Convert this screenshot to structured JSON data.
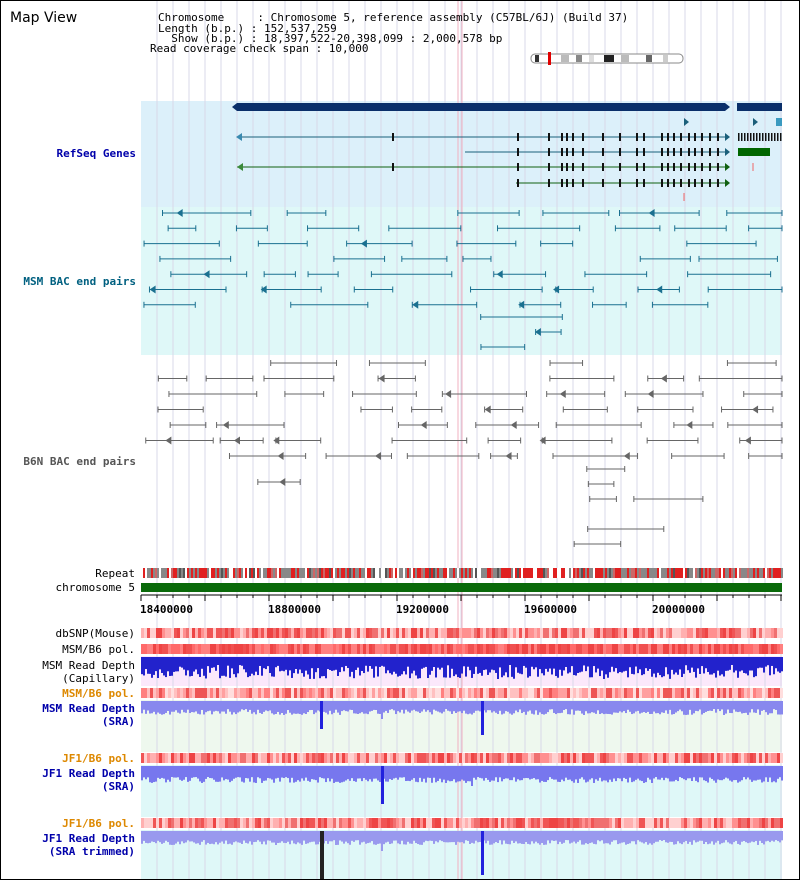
{
  "page_title": "Map View",
  "info": {
    "chromosome": "Chromosome     : Chromosome 5, reference assembly (C57BL/6J) (Build 37)",
    "length": "Length (b.p.) : 152,537,259",
    "show": "  Show (b.p.) : 18,397,522-20,398,099 : 2,000,578 bp",
    "coverage": "Read coverage check span : 10,000"
  },
  "tracks": {
    "refseq": "RefSeq Genes",
    "msm_bac": "MSM BAC end pairs",
    "b6n_bac": "B6N BAC end pairs"
  },
  "panel_labels": {
    "repeat": "Repeat",
    "chromosome": "chromosome 5",
    "dbsnp": "dbSNP(Mouse)",
    "msm_b6_pol": "MSM/B6 pol.",
    "msm_read_depth_cap_1": "MSM Read Depth",
    "msm_read_depth_cap_2": "(Capillary)",
    "msm_b6_pol_2": "MSM/B6 pol.",
    "msm_read_depth_sra_1": "MSM Read Depth",
    "msm_read_depth_sra_2": "(SRA)",
    "jf1_b6_pol_1": "JF1/B6 pol.",
    "jf1_read_depth_1": "JF1 Read Depth",
    "jf1_read_depth_1b": "(SRA)",
    "jf1_b6_pol_2": "JF1/B6 pol.",
    "jf1_read_depth_2": "JF1 Read Depth",
    "jf1_read_depth_2b": "(SRA trimmed)"
  },
  "axis": {
    "ticks": [
      "18400000",
      "18800000",
      "19200000",
      "19600000",
      "20000000"
    ]
  },
  "colors": {
    "refseq_bg": "#dcf0fa",
    "msm_bg": "#dff8f8",
    "gene_blue": "#1a5f7a",
    "gene_green": "#106010",
    "depth_blue": "#2222dd",
    "pol_red": "#ee3333",
    "label_blue": "#0000aa",
    "label_teal": "#006080",
    "label_orange": "#dd8800"
  }
}
